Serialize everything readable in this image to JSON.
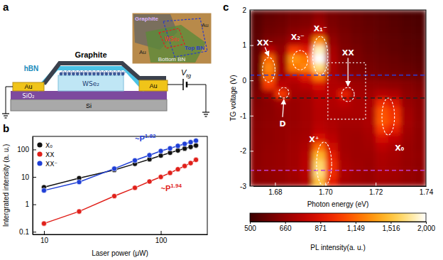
{
  "panels": [
    "a",
    "b",
    "c"
  ],
  "schematic": {
    "layers": {
      "graphite": "Graphite",
      "hbn": "hBN",
      "wse2": "WSe₂",
      "au_left": "Au",
      "au_right": "Au",
      "sio2": "SiO₂",
      "si": "Si"
    },
    "gate": {
      "main": "V",
      "sub": "tg"
    },
    "inset": {
      "graphite": "Graphite",
      "au_left": "Au",
      "au_top": "Au",
      "wse2": "WSe₂",
      "top_bn": "Top BN",
      "bottom_bn": "Bottom BN"
    }
  },
  "chart_data": [
    {
      "type": "line",
      "log": true,
      "marker": "circle",
      "legend": "upper left",
      "x_label": "Laser power (μW)",
      "y_label": "Intergrated intensity (a. u.)",
      "xlim": [
        8,
        250
      ],
      "xticks": [
        10,
        100
      ],
      "ylim": [
        0.08,
        300
      ],
      "yticks": [
        0.1,
        1,
        10,
        100
      ],
      "x": [
        10,
        20,
        40,
        60,
        80,
        100,
        120,
        140,
        160,
        180,
        200
      ],
      "series": [
        {
          "name": "X₀",
          "color": "#111111",
          "values": [
            4.2,
            9,
            18,
            30,
            44,
            60,
            76,
            92,
            108,
            124,
            140
          ]
        },
        {
          "name": "XX",
          "color": "#e0201a",
          "values": [
            0.2,
            0.55,
            2,
            4,
            6.8,
            10,
            14,
            19,
            25,
            32,
            42
          ]
        },
        {
          "name": "XX⁻",
          "color": "#1f3fd6",
          "values": [
            3.2,
            6.5,
            20,
            40,
            62,
            88,
            110,
            135,
            160,
            185,
            210
          ]
        }
      ],
      "annotations": [
        {
          "text": "~P",
          "exponent": "1.82",
          "color": "#1f3fd6",
          "x": 60,
          "y": 200
        },
        {
          "text": "~P",
          "exponent": "1.94",
          "color": "#e0201a",
          "x": 100,
          "y": 3
        }
      ]
    },
    {
      "type": "heatmap",
      "x_label": "Photon energy (eV)",
      "y_label": "TG voltage (V)",
      "xlim": [
        1.67,
        1.74
      ],
      "xticks": [
        {
          "value": 1.68,
          "label": "1.68"
        },
        {
          "value": 1.7,
          "label": "1.70"
        },
        {
          "value": 1.72,
          "label": "1.72"
        },
        {
          "value": 1.74,
          "label": "1.74"
        }
      ],
      "ylim": [
        -3,
        2
      ],
      "yticks": [
        -3,
        -2,
        -1,
        0,
        1,
        2
      ],
      "x": [
        1.6725,
        1.6775,
        1.6825,
        1.6875,
        1.6925,
        1.6975,
        1.7025,
        1.7075,
        1.7125,
        1.7175,
        1.7225,
        1.7275,
        1.7325,
        1.7375
      ],
      "y": [
        -2.875,
        -2.625,
        -2.375,
        -2.125,
        -1.875,
        -1.625,
        -1.375,
        -1.125,
        -0.875,
        -0.625,
        -0.375,
        -0.125,
        0.125,
        0.375,
        0.625,
        0.875,
        1.125,
        1.375,
        1.625,
        1.875
      ],
      "z": [
        [
          640,
          650,
          660,
          680,
          720,
          1500,
          900,
          700,
          680,
          670,
          690,
          680,
          660,
          650
        ],
        [
          640,
          655,
          665,
          690,
          740,
          1700,
          950,
          710,
          680,
          670,
          700,
          690,
          665,
          650
        ],
        [
          645,
          660,
          670,
          690,
          750,
          1650,
          950,
          710,
          685,
          675,
          710,
          690,
          665,
          650
        ],
        [
          645,
          660,
          670,
          690,
          740,
          1450,
          900,
          700,
          680,
          680,
          720,
          700,
          670,
          655
        ],
        [
          640,
          655,
          665,
          685,
          720,
          1150,
          820,
          690,
          680,
          690,
          760,
          720,
          670,
          650
        ],
        [
          640,
          650,
          660,
          680,
          700,
          850,
          760,
          690,
          680,
          700,
          850,
          780,
          680,
          650
        ],
        [
          635,
          650,
          660,
          675,
          690,
          760,
          730,
          690,
          690,
          710,
          1000,
          900,
          690,
          650
        ],
        [
          630,
          645,
          655,
          670,
          690,
          740,
          720,
          700,
          700,
          720,
          1100,
          1000,
          700,
          650
        ],
        [
          630,
          640,
          660,
          670,
          690,
          740,
          720,
          720,
          710,
          720,
          1080,
          980,
          690,
          645
        ],
        [
          620,
          640,
          680,
          670,
          690,
          750,
          730,
          760,
          710,
          710,
          950,
          860,
          670,
          640
        ],
        [
          610,
          680,
          1000,
          700,
          700,
          770,
          740,
          900,
          700,
          690,
          740,
          720,
          650,
          630
        ],
        [
          590,
          1000,
          760,
          720,
          760,
          850,
          730,
          720,
          680,
          660,
          660,
          650,
          630,
          610
        ],
        [
          580,
          1150,
          700,
          780,
          900,
          1200,
          720,
          660,
          640,
          620,
          610,
          600,
          590,
          580
        ],
        [
          570,
          1250,
          690,
          1200,
          1250,
          1700,
          720,
          640,
          620,
          600,
          590,
          580,
          570,
          560
        ],
        [
          570,
          1150,
          680,
          1300,
          1200,
          2000,
          720,
          630,
          610,
          590,
          580,
          570,
          560,
          550
        ],
        [
          560,
          760,
          660,
          1000,
          900,
          1850,
          700,
          620,
          600,
          580,
          570,
          560,
          550,
          545
        ],
        [
          555,
          620,
          630,
          700,
          740,
          1300,
          660,
          610,
          590,
          575,
          565,
          555,
          545,
          540
        ],
        [
          550,
          590,
          600,
          640,
          660,
          800,
          630,
          600,
          580,
          570,
          560,
          550,
          540,
          535
        ],
        [
          545,
          575,
          585,
          610,
          620,
          680,
          610,
          590,
          575,
          565,
          555,
          545,
          535,
          530
        ],
        [
          540,
          565,
          575,
          595,
          605,
          640,
          600,
          585,
          570,
          560,
          550,
          540,
          530,
          525
        ]
      ],
      "colorbar": {
        "label": "PL intensity(a. u.)",
        "range": [
          500,
          2000
        ],
        "log": true,
        "ticks": [
          500,
          660,
          871,
          {
            "value": 1149,
            "label": "1,149"
          },
          {
            "value": 1516,
            "label": "1,516"
          },
          {
            "value": 2000,
            "label": "2,000"
          }
        ]
      },
      "hlines": [
        {
          "y": 0.15,
          "color": "#2b3fd6",
          "line_style": "dashed"
        },
        {
          "y": -0.5,
          "color": "#222222",
          "line_style": "dashed"
        },
        {
          "y": -2.55,
          "color": "#c040d0",
          "line_style": "dashed"
        }
      ],
      "box": {
        "x": [
          1.701,
          1.716
        ],
        "y": [
          -1.1,
          0.5
        ],
        "line_style": "dotted"
      },
      "annotations": [
        {
          "text": "XX⁻",
          "x": 1.676,
          "y": 1.0,
          "region": [
            1.675,
            1.68,
            -0.05,
            0.65
          ],
          "arrow": true
        },
        {
          "text": "X₂⁻",
          "x": 1.689,
          "y": 1.15,
          "region": [
            1.687,
            1.693,
            0.3,
            0.85
          ],
          "arrow": false
        },
        {
          "text": "X₁⁻",
          "x": 1.698,
          "y": 1.4,
          "region": [
            1.695,
            1.701,
            0.15,
            1.25
          ],
          "arrow": false
        },
        {
          "text": "XX",
          "x": 1.709,
          "y": 0.7,
          "region": [
            1.7065,
            1.7115,
            -0.6,
            -0.2
          ],
          "arrow": true
        },
        {
          "text": "D",
          "x": 1.683,
          "y": -1.3,
          "region": [
            1.6815,
            1.6855,
            -0.5,
            -0.2
          ],
          "arrow": true
        },
        {
          "text": "X⁺",
          "x": 1.6955,
          "y": -1.75,
          "region": [
            1.6965,
            1.7025,
            -3.0,
            -1.75
          ],
          "arrow": false
        },
        {
          "text": "X₀",
          "x": 1.7295,
          "y": -2.0,
          "region": [
            1.7225,
            1.7275,
            -1.55,
            -0.5
          ],
          "arrow": false
        }
      ]
    }
  ]
}
